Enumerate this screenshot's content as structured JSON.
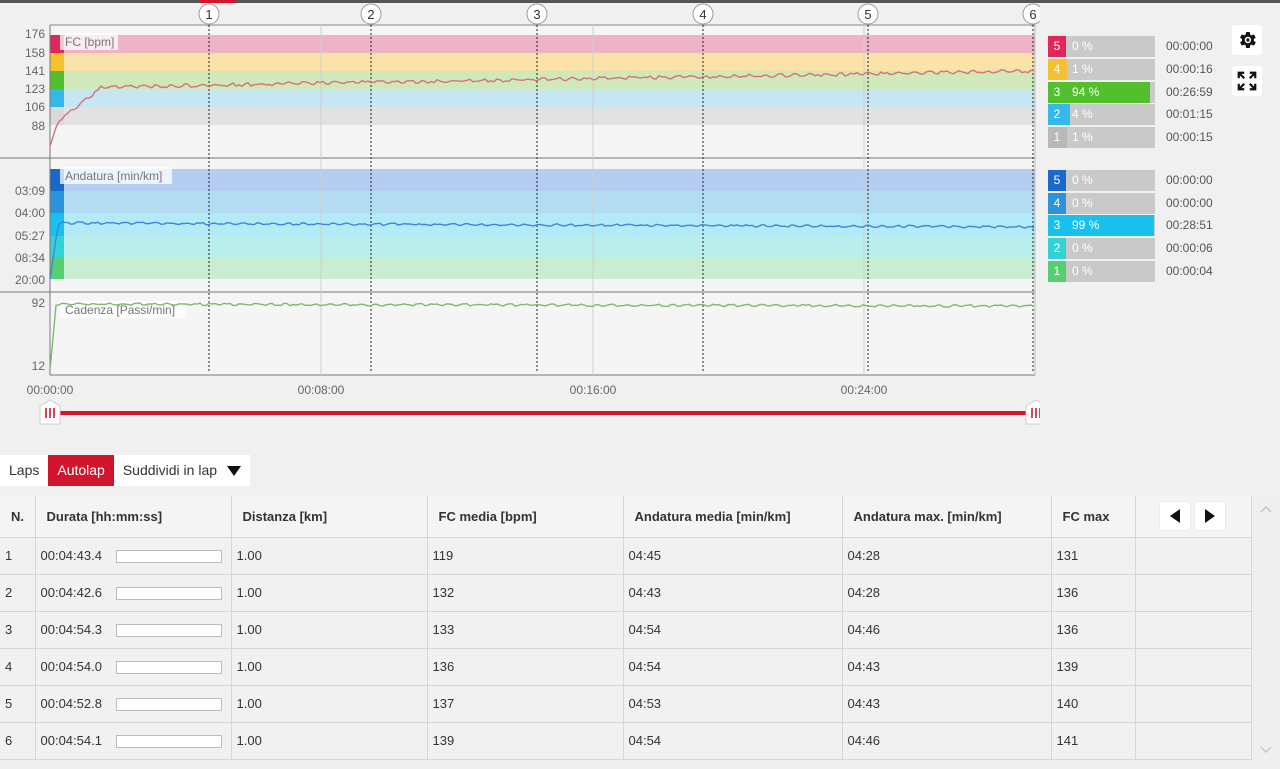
{
  "colors": {
    "brand": "#d2142d",
    "hr_line": "#d9707c",
    "pace_line": "#3d86d8",
    "cad_line": "#7fba6d"
  },
  "chart_data": {
    "type": "line",
    "x_ticks": [
      "00:00:00",
      "00:08:00",
      "00:16:00",
      "00:24:00"
    ],
    "lap_markers": [
      "1",
      "2",
      "3",
      "4",
      "5",
      "6"
    ],
    "panels": [
      {
        "name": "FC [bpm]",
        "yticks": [
          "176",
          "158",
          "141",
          "123",
          "106",
          "88"
        ],
        "zones": [
          {
            "num": "5",
            "pct": "0 %",
            "time": "00:00:00",
            "pct_value": 0,
            "color": "#e0265a"
          },
          {
            "num": "4",
            "pct": "1 %",
            "time": "00:00:16",
            "pct_value": 1,
            "color": "#f6c12e"
          },
          {
            "num": "3",
            "pct": "94 %",
            "time": "00:26:59",
            "pct_value": 94,
            "color": "#52bf2f"
          },
          {
            "num": "2",
            "pct": "4 %",
            "time": "00:01:15",
            "pct_value": 4,
            "color": "#34b7e9"
          },
          {
            "num": "1",
            "pct": "1 %",
            "time": "00:00:15",
            "pct_value": 1,
            "color": "#b8b8b8"
          }
        ]
      },
      {
        "name": "Andatura [min/km]",
        "yticks": [
          "03:09",
          "04:00",
          "05:27",
          "08:34",
          "20:00"
        ],
        "zones": [
          {
            "num": "5",
            "pct": "0 %",
            "time": "00:00:00",
            "pct_value": 0,
            "color": "#1a69c9"
          },
          {
            "num": "4",
            "pct": "0 %",
            "time": "00:00:00",
            "pct_value": 0,
            "color": "#2a93db"
          },
          {
            "num": "3",
            "pct": "99 %",
            "time": "00:28:51",
            "pct_value": 99,
            "color": "#18c0ee"
          },
          {
            "num": "2",
            "pct": "0 %",
            "time": "00:00:06",
            "pct_value": 0,
            "color": "#33d2d6"
          },
          {
            "num": "1",
            "pct": "0 %",
            "time": "00:00:04",
            "pct_value": 0,
            "color": "#55cf71"
          }
        ]
      },
      {
        "name": "Cadenza [Passi/min]",
        "yticks": [
          "92",
          "12"
        ]
      }
    ]
  },
  "tabs": {
    "laps": "Laps",
    "autolap": "Autolap",
    "split": "Suddividi in lap"
  },
  "table": {
    "headers": [
      "N.",
      "Durata [hh:mm:ss]",
      "Distanza [km]",
      "FC media [bpm]",
      "Andatura media [min/km]",
      "Andatura max. [min/km]",
      "FC max"
    ],
    "rows": [
      [
        "1",
        "00:04:43.4",
        "1.00",
        "119",
        "04:45",
        "04:28",
        "131"
      ],
      [
        "2",
        "00:04:42.6",
        "1.00",
        "132",
        "04:43",
        "04:28",
        "136"
      ],
      [
        "3",
        "00:04:54.3",
        "1.00",
        "133",
        "04:54",
        "04:46",
        "136"
      ],
      [
        "4",
        "00:04:54.0",
        "1.00",
        "136",
        "04:54",
        "04:43",
        "139"
      ],
      [
        "5",
        "00:04:52.8",
        "1.00",
        "137",
        "04:53",
        "04:43",
        "140"
      ],
      [
        "6",
        "00:04:54.1",
        "1.00",
        "139",
        "04:54",
        "04:46",
        "141"
      ]
    ]
  }
}
